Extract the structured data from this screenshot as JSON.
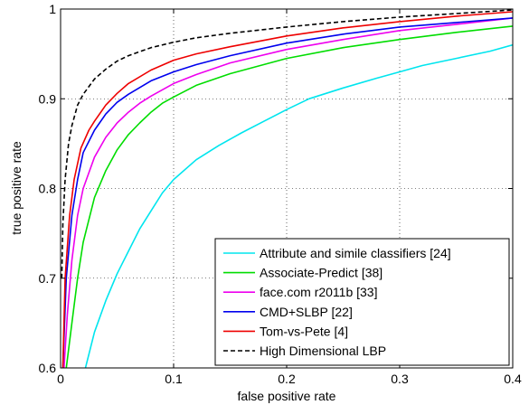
{
  "chart_data": {
    "type": "line",
    "xlabel": "false positive rate",
    "ylabel": "true positive rate",
    "xlim": [
      0,
      0.4
    ],
    "ylim": [
      0.6,
      1
    ],
    "grid": true,
    "legend_position": "bottom-right",
    "x_ticks": [
      "0",
      "0.1",
      "0.2",
      "0.3",
      "0.4"
    ],
    "y_ticks": [
      "0.6",
      "0.7",
      "0.8",
      "0.9",
      "1"
    ],
    "series": [
      {
        "name": "Attribute and simile classifiers [24]",
        "color": "#00e5ee",
        "dash": "solid",
        "x": [
          0.022,
          0.03,
          0.04,
          0.05,
          0.06,
          0.07,
          0.08,
          0.09,
          0.1,
          0.12,
          0.14,
          0.16,
          0.18,
          0.2,
          0.22,
          0.25,
          0.28,
          0.3,
          0.32,
          0.35,
          0.38,
          0.4
        ],
        "y": [
          0.6,
          0.64,
          0.675,
          0.705,
          0.73,
          0.755,
          0.775,
          0.795,
          0.81,
          0.832,
          0.848,
          0.862,
          0.875,
          0.888,
          0.9,
          0.912,
          0.923,
          0.93,
          0.937,
          0.945,
          0.953,
          0.96
        ]
      },
      {
        "name": "Associate-Predict [38]",
        "color": "#00dd00",
        "dash": "solid",
        "x": [
          0.005,
          0.01,
          0.015,
          0.02,
          0.03,
          0.04,
          0.05,
          0.06,
          0.07,
          0.08,
          0.09,
          0.1,
          0.12,
          0.15,
          0.2,
          0.25,
          0.3,
          0.35,
          0.4
        ],
        "y": [
          0.6,
          0.65,
          0.7,
          0.74,
          0.79,
          0.82,
          0.843,
          0.86,
          0.873,
          0.885,
          0.895,
          0.902,
          0.915,
          0.928,
          0.945,
          0.957,
          0.966,
          0.974,
          0.981
        ]
      },
      {
        "name": "face.com r2011b [33]",
        "color": "#ee00ee",
        "dash": "solid",
        "x": [
          0.003,
          0.006,
          0.01,
          0.015,
          0.02,
          0.03,
          0.04,
          0.05,
          0.06,
          0.07,
          0.08,
          0.1,
          0.12,
          0.15,
          0.2,
          0.25,
          0.3,
          0.35,
          0.4
        ],
        "y": [
          0.6,
          0.66,
          0.72,
          0.77,
          0.8,
          0.835,
          0.857,
          0.873,
          0.885,
          0.895,
          0.903,
          0.917,
          0.927,
          0.94,
          0.955,
          0.966,
          0.976,
          0.983,
          0.99
        ]
      },
      {
        "name": "CMD+SLBP [22]",
        "color": "#0000ee",
        "dash": "solid",
        "x": [
          0.002,
          0.005,
          0.01,
          0.015,
          0.02,
          0.03,
          0.04,
          0.05,
          0.06,
          0.08,
          0.1,
          0.12,
          0.15,
          0.2,
          0.25,
          0.3,
          0.35,
          0.4
        ],
        "y": [
          0.6,
          0.7,
          0.77,
          0.81,
          0.84,
          0.865,
          0.883,
          0.896,
          0.905,
          0.92,
          0.93,
          0.938,
          0.948,
          0.962,
          0.972,
          0.98,
          0.985,
          0.99
        ]
      },
      {
        "name": "Tom-vs-Pete [4]",
        "color": "#ee0000",
        "dash": "solid",
        "x": [
          0.002,
          0.004,
          0.008,
          0.012,
          0.018,
          0.025,
          0.03,
          0.04,
          0.05,
          0.06,
          0.08,
          0.1,
          0.12,
          0.15,
          0.2,
          0.25,
          0.3,
          0.35,
          0.4
        ],
        "y": [
          0.6,
          0.7,
          0.77,
          0.81,
          0.845,
          0.865,
          0.875,
          0.893,
          0.906,
          0.917,
          0.932,
          0.943,
          0.95,
          0.958,
          0.97,
          0.979,
          0.986,
          0.992,
          0.997
        ]
      },
      {
        "name": "High Dimensional LBP",
        "color": "#000000",
        "dash": "dashed",
        "x": [
          0.001,
          0.002,
          0.004,
          0.007,
          0.01,
          0.015,
          0.02,
          0.03,
          0.04,
          0.05,
          0.06,
          0.08,
          0.1,
          0.12,
          0.15,
          0.2,
          0.25,
          0.3,
          0.35,
          0.4
        ],
        "y": [
          0.7,
          0.76,
          0.81,
          0.85,
          0.87,
          0.893,
          0.905,
          0.922,
          0.933,
          0.942,
          0.948,
          0.957,
          0.963,
          0.968,
          0.973,
          0.98,
          0.986,
          0.991,
          0.995,
          0.999
        ]
      }
    ]
  }
}
